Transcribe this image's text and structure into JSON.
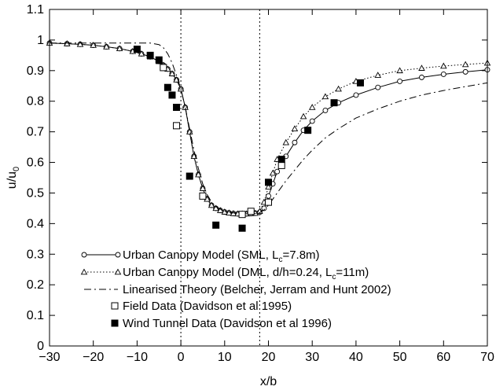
{
  "chart_data": {
    "type": "line",
    "xlabel": "x/b",
    "ylabel": "u/u",
    "ylabel_subscript": "0",
    "xlim": [
      -30,
      70
    ],
    "ylim": [
      0,
      1.1
    ],
    "x_ticks": [
      -30,
      -20,
      -10,
      0,
      10,
      20,
      30,
      40,
      50,
      60,
      70
    ],
    "x_tick_labels": [
      "−30",
      "−20",
      "−10",
      "0",
      "10",
      "20",
      "30",
      "40",
      "50",
      "60",
      "70"
    ],
    "y_ticks": [
      0,
      0.1,
      0.2,
      0.3,
      0.4,
      0.5,
      0.6,
      0.7,
      0.8,
      0.9,
      1,
      1.1
    ],
    "y_tick_labels": [
      "0",
      "0.1",
      "0.2",
      "0.3",
      "0.4",
      "0.5",
      "0.6",
      "0.7",
      "0.8",
      "0.9",
      "1",
      "1.1"
    ],
    "vertical_lines": [
      0,
      18
    ],
    "grid": false,
    "legend_placement": "bottom-left",
    "series": [
      {
        "name": "Urban Canopy Model (SML, L=7.8m)",
        "legend_main": "Urban Canopy Model (SML, L",
        "legend_sub": "c",
        "legend_tail": "=7.8m)",
        "style": "solid",
        "marker": "circle",
        "x": [
          -30,
          -26,
          -23,
          -20,
          -17,
          -14,
          -11,
          -9,
          -7,
          -5,
          -4,
          -3,
          -2,
          -1,
          0,
          1,
          2,
          3,
          4,
          5,
          6,
          7,
          8,
          9,
          10,
          11,
          12,
          13,
          14,
          15,
          16,
          17,
          18,
          19,
          20,
          21,
          22,
          24,
          26,
          28,
          30,
          33,
          36,
          40,
          45,
          50,
          55,
          60,
          65,
          70
        ],
        "y": [
          0.99,
          0.988,
          0.986,
          0.983,
          0.978,
          0.972,
          0.963,
          0.955,
          0.945,
          0.93,
          0.918,
          0.905,
          0.89,
          0.87,
          0.84,
          0.78,
          0.7,
          0.62,
          0.56,
          0.515,
          0.48,
          0.46,
          0.45,
          0.443,
          0.438,
          0.435,
          0.433,
          0.432,
          0.432,
          0.432,
          0.433,
          0.434,
          0.437,
          0.45,
          0.49,
          0.53,
          0.57,
          0.62,
          0.665,
          0.705,
          0.735,
          0.77,
          0.795,
          0.82,
          0.845,
          0.865,
          0.878,
          0.888,
          0.896,
          0.903
        ]
      },
      {
        "name": "Urban Canopy Model (DML, d/h=0.24, L=11m)",
        "legend_main": "Urban Canopy Model (DML, d/h=0.24, L",
        "legend_sub": "c",
        "legend_tail": "=11m)",
        "style": "dotted",
        "marker": "triangle",
        "x": [
          -30,
          -26,
          -23,
          -20,
          -17,
          -14,
          -11,
          -9,
          -7,
          -5,
          -4,
          -3,
          -2,
          -1,
          0,
          1,
          2,
          3,
          4,
          5,
          6,
          7,
          8,
          9,
          10,
          11,
          12,
          13,
          14,
          15,
          16,
          17,
          18,
          19,
          20,
          21,
          22,
          24,
          26,
          28,
          30,
          33,
          36,
          40,
          45,
          50,
          55,
          60,
          65,
          70
        ],
        "y": [
          0.99,
          0.988,
          0.986,
          0.983,
          0.978,
          0.972,
          0.963,
          0.955,
          0.945,
          0.93,
          0.918,
          0.905,
          0.89,
          0.87,
          0.84,
          0.78,
          0.7,
          0.62,
          0.56,
          0.515,
          0.48,
          0.46,
          0.45,
          0.443,
          0.438,
          0.435,
          0.433,
          0.432,
          0.432,
          0.432,
          0.433,
          0.434,
          0.44,
          0.47,
          0.52,
          0.565,
          0.61,
          0.665,
          0.71,
          0.75,
          0.78,
          0.815,
          0.84,
          0.865,
          0.885,
          0.9,
          0.908,
          0.915,
          0.92,
          0.925
        ]
      },
      {
        "name": "Linearised Theory (Belcher, Jerram and Hunt 2002)",
        "style": "dashdot",
        "marker": "none",
        "x": [
          -30,
          -20,
          -10,
          -7,
          -5,
          -4,
          -3,
          -2,
          -1,
          0,
          1,
          2,
          3,
          4,
          5,
          6,
          7,
          8,
          10,
          12,
          14,
          16,
          17,
          18,
          19,
          20,
          21,
          22,
          23,
          24,
          26,
          28,
          30,
          33,
          36,
          40,
          45,
          50,
          55,
          60,
          65,
          70
        ],
        "y": [
          0.99,
          0.99,
          0.99,
          0.99,
          0.985,
          0.975,
          0.955,
          0.925,
          0.885,
          0.84,
          0.78,
          0.71,
          0.64,
          0.58,
          0.53,
          0.495,
          0.47,
          0.455,
          0.44,
          0.435,
          0.432,
          0.432,
          0.433,
          0.436,
          0.445,
          0.46,
          0.48,
          0.5,
          0.52,
          0.54,
          0.575,
          0.61,
          0.64,
          0.68,
          0.71,
          0.745,
          0.775,
          0.8,
          0.82,
          0.835,
          0.848,
          0.86
        ]
      },
      {
        "name": "Field Data (Davidson et al 1995)",
        "style": "none",
        "marker": "open-square",
        "x": [
          -4,
          -1,
          5,
          14,
          16,
          20,
          23
        ],
        "y": [
          0.91,
          0.72,
          0.49,
          0.43,
          0.44,
          0.47,
          0.59
        ]
      },
      {
        "name": "Wind Tunnel Data (Davidson et al 1996)",
        "style": "none",
        "marker": "filled-square",
        "x": [
          -10,
          -7,
          -5,
          -3,
          -2,
          -1,
          2,
          8,
          14,
          20,
          23,
          29,
          35,
          41
        ],
        "y": [
          0.97,
          0.95,
          0.935,
          0.845,
          0.82,
          0.78,
          0.555,
          0.395,
          0.385,
          0.535,
          0.61,
          0.705,
          0.795,
          0.86
        ]
      }
    ]
  }
}
